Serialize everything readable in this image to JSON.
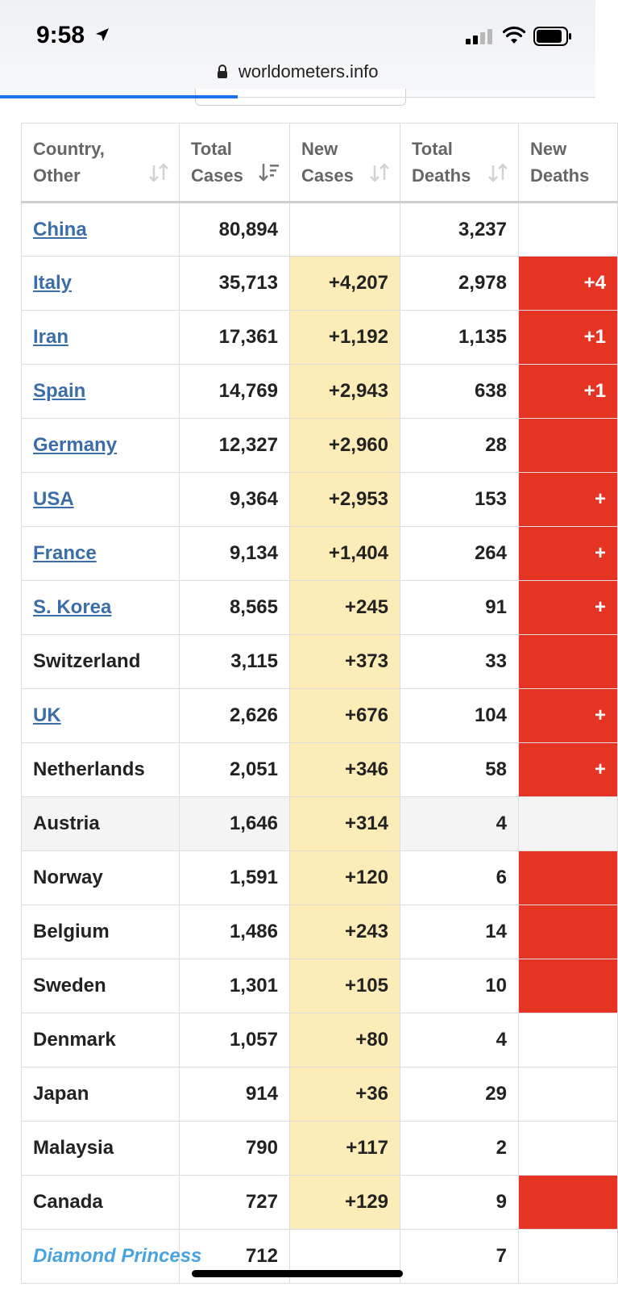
{
  "status_bar": {
    "time": "9:58"
  },
  "browser": {
    "url": "worldometers.info"
  },
  "table": {
    "headers": [
      {
        "line1": "Country,",
        "line2": "Other"
      },
      {
        "line1": "Total",
        "line2": "Cases"
      },
      {
        "line1": "New",
        "line2": "Cases"
      },
      {
        "line1": "Total",
        "line2": "Deaths"
      },
      {
        "line1": "New",
        "line2": "Deaths"
      }
    ],
    "rows": [
      {
        "country": "China",
        "total_cases": "80,894",
        "new_cases": "",
        "total_deaths": "3,237",
        "new_deaths": "",
        "link": true,
        "new_cases_hl": false,
        "new_deaths_hl": false
      },
      {
        "country": "Italy",
        "total_cases": "35,713",
        "new_cases": "+4,207",
        "total_deaths": "2,978",
        "new_deaths": "+4",
        "link": true,
        "new_cases_hl": true,
        "new_deaths_hl": true
      },
      {
        "country": "Iran",
        "total_cases": "17,361",
        "new_cases": "+1,192",
        "total_deaths": "1,135",
        "new_deaths": "+1",
        "link": true,
        "new_cases_hl": true,
        "new_deaths_hl": true
      },
      {
        "country": "Spain",
        "total_cases": "14,769",
        "new_cases": "+2,943",
        "total_deaths": "638",
        "new_deaths": "+1",
        "link": true,
        "new_cases_hl": true,
        "new_deaths_hl": true
      },
      {
        "country": "Germany",
        "total_cases": "12,327",
        "new_cases": "+2,960",
        "total_deaths": "28",
        "new_deaths": "",
        "link": true,
        "new_cases_hl": true,
        "new_deaths_hl": true
      },
      {
        "country": "USA",
        "total_cases": "9,364",
        "new_cases": "+2,953",
        "total_deaths": "153",
        "new_deaths": "+",
        "link": true,
        "new_cases_hl": true,
        "new_deaths_hl": true
      },
      {
        "country": "France",
        "total_cases": "9,134",
        "new_cases": "+1,404",
        "total_deaths": "264",
        "new_deaths": "+",
        "link": true,
        "new_cases_hl": true,
        "new_deaths_hl": true
      },
      {
        "country": "S. Korea",
        "total_cases": "8,565",
        "new_cases": "+245",
        "total_deaths": "91",
        "new_deaths": "+",
        "link": true,
        "new_cases_hl": true,
        "new_deaths_hl": true
      },
      {
        "country": "Switzerland",
        "total_cases": "3,115",
        "new_cases": "+373",
        "total_deaths": "33",
        "new_deaths": "",
        "link": false,
        "new_cases_hl": true,
        "new_deaths_hl": true
      },
      {
        "country": "UK",
        "total_cases": "2,626",
        "new_cases": "+676",
        "total_deaths": "104",
        "new_deaths": "+",
        "link": true,
        "new_cases_hl": true,
        "new_deaths_hl": true
      },
      {
        "country": "Netherlands",
        "total_cases": "2,051",
        "new_cases": "+346",
        "total_deaths": "58",
        "new_deaths": "+",
        "link": false,
        "new_cases_hl": true,
        "new_deaths_hl": true
      },
      {
        "country": "Austria",
        "total_cases": "1,646",
        "new_cases": "+314",
        "total_deaths": "4",
        "new_deaths": "",
        "link": false,
        "new_cases_hl": true,
        "new_deaths_hl": false,
        "alt": true
      },
      {
        "country": "Norway",
        "total_cases": "1,591",
        "new_cases": "+120",
        "total_deaths": "6",
        "new_deaths": "",
        "link": false,
        "new_cases_hl": true,
        "new_deaths_hl": true
      },
      {
        "country": "Belgium",
        "total_cases": "1,486",
        "new_cases": "+243",
        "total_deaths": "14",
        "new_deaths": "",
        "link": false,
        "new_cases_hl": true,
        "new_deaths_hl": true
      },
      {
        "country": "Sweden",
        "total_cases": "1,301",
        "new_cases": "+105",
        "total_deaths": "10",
        "new_deaths": "",
        "link": false,
        "new_cases_hl": true,
        "new_deaths_hl": true
      },
      {
        "country": "Denmark",
        "total_cases": "1,057",
        "new_cases": "+80",
        "total_deaths": "4",
        "new_deaths": "",
        "link": false,
        "new_cases_hl": true,
        "new_deaths_hl": false
      },
      {
        "country": "Japan",
        "total_cases": "914",
        "new_cases": "+36",
        "total_deaths": "29",
        "new_deaths": "",
        "link": false,
        "new_cases_hl": true,
        "new_deaths_hl": false
      },
      {
        "country": "Malaysia",
        "total_cases": "790",
        "new_cases": "+117",
        "total_deaths": "2",
        "new_deaths": "",
        "link": false,
        "new_cases_hl": true,
        "new_deaths_hl": false
      },
      {
        "country": "Canada",
        "total_cases": "727",
        "new_cases": "+129",
        "total_deaths": "9",
        "new_deaths": "",
        "link": false,
        "new_cases_hl": true,
        "new_deaths_hl": true
      },
      {
        "country": "Diamond Princess",
        "total_cases": "712",
        "new_cases": "",
        "total_deaths": "7",
        "new_deaths": "",
        "link": "italic",
        "new_cases_hl": false,
        "new_deaths_hl": false
      }
    ]
  },
  "colors": {
    "new_cases_bg": "#fbecb8",
    "new_deaths_bg": "#e53424",
    "link": "#3b6ea8",
    "progress": "#1a73e8"
  }
}
